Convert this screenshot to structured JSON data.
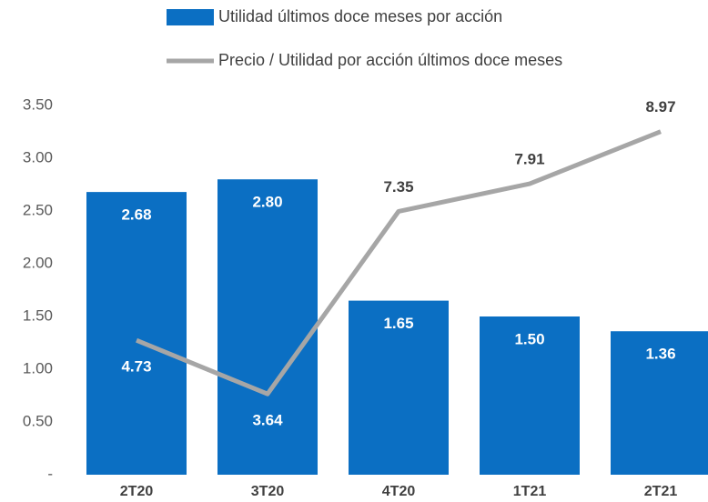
{
  "chart_data": {
    "type": "bar",
    "categories": [
      "2T20",
      "3T20",
      "4T20",
      "1T21",
      "2T21"
    ],
    "series": [
      {
        "name": "Utilidad últimos doce meses por acción",
        "type": "bar",
        "color": "#0b6fc3",
        "values": [
          2.68,
          2.8,
          1.65,
          1.5,
          1.36
        ],
        "value_labels": [
          "2.68",
          "2.80",
          "1.65",
          "1.50",
          "1.36"
        ]
      },
      {
        "name": "Precio / Utilidad por acción últimos doce meses",
        "type": "line",
        "axis": "y2",
        "color": "#a6a6a6",
        "values": [
          4.73,
          3.64,
          7.35,
          7.91,
          8.97
        ]
      }
    ],
    "ylim": [
      0,
      3.5
    ],
    "yticks": [
      {
        "value": 0,
        "label": "-"
      },
      {
        "value": 0.5,
        "label": "0.50"
      },
      {
        "value": 1,
        "label": "1.00"
      },
      {
        "value": 1.5,
        "label": "1.50"
      },
      {
        "value": 2,
        "label": "2.00"
      },
      {
        "value": 2.5,
        "label": "2.50"
      },
      {
        "value": 3,
        "label": "3.00"
      },
      {
        "value": 3.5,
        "label": "3.50"
      }
    ],
    "y2lim": [
      2,
      9.5
    ],
    "grid": false,
    "legend": "top"
  }
}
